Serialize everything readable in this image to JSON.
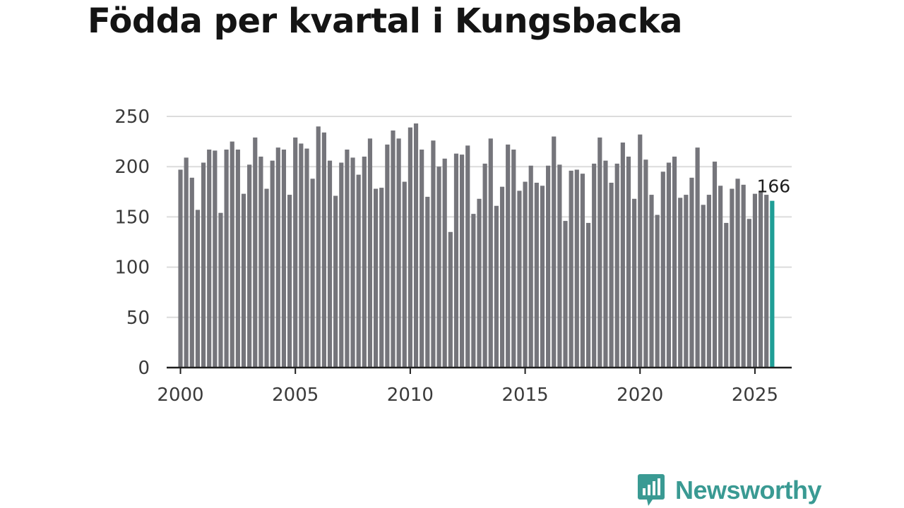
{
  "title": "Födda per kvartal i Kungsbacka",
  "brand": {
    "name": "Newsworthy",
    "icon": "newsworthy-bar-chart-icon"
  },
  "colors": {
    "bar": "#75757b",
    "highlight": "#1f9e96",
    "grid": "#dcdcdc",
    "axis": "#1e1e1e",
    "brand": "#3a9a93"
  },
  "chart_data": {
    "type": "bar",
    "title": "Födda per kvartal i Kungsbacka",
    "xlabel": "",
    "ylabel": "",
    "ylim": [
      0,
      250
    ],
    "yticks": [
      0,
      50,
      100,
      150,
      200,
      250
    ],
    "xticks": [
      2000,
      2005,
      2010,
      2015,
      2020,
      2025
    ],
    "xlim": [
      1999.4,
      2026.6
    ],
    "grid": true,
    "highlight_index": 103,
    "highlight_label": "166",
    "x_start": 2000,
    "values": [
      197,
      209,
      189,
      157,
      204,
      217,
      216,
      154,
      217,
      225,
      217,
      173,
      202,
      229,
      210,
      178,
      206,
      219,
      217,
      172,
      229,
      223,
      218,
      188,
      240,
      234,
      206,
      171,
      204,
      217,
      209,
      192,
      210,
      228,
      178,
      179,
      222,
      236,
      228,
      185,
      239,
      243,
      217,
      170,
      226,
      200,
      208,
      135,
      213,
      212,
      221,
      153,
      168,
      203,
      228,
      161,
      180,
      222,
      217,
      176,
      185,
      201,
      184,
      181,
      201,
      230,
      202,
      146,
      196,
      197,
      193,
      144,
      203,
      229,
      206,
      184,
      203,
      224,
      210,
      168,
      232,
      207,
      172,
      152,
      195,
      204,
      210,
      169,
      172,
      189,
      219,
      162,
      172,
      205,
      181,
      144,
      178,
      188,
      182,
      148,
      173,
      176,
      172,
      166
    ]
  }
}
